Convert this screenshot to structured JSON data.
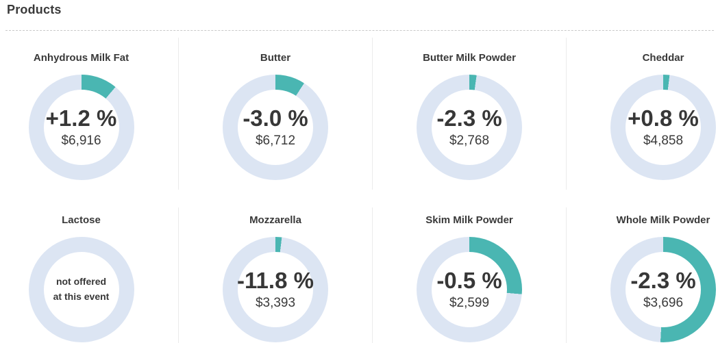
{
  "header": {
    "title": "Products"
  },
  "theme": {
    "arc_color": "#4ab6b2",
    "ring_color": "#dce5f3",
    "text_color": "#373737",
    "separator_color": "#ebebeb",
    "dashed_line_color": "#c9c9c9"
  },
  "chart_data": {
    "type": "pie",
    "subtype": "donut-grid",
    "title": "Products",
    "legend": "none",
    "charts": [
      {
        "label": "Anhydrous Milk Fat",
        "change": "+1.2 %",
        "change_value": 1.2,
        "price": "$6,916",
        "price_value": 6916,
        "arc_deg": 40
      },
      {
        "label": "Butter",
        "change": "-3.0 %",
        "change_value": -3.0,
        "price": "$6,712",
        "price_value": 6712,
        "arc_deg": 33
      },
      {
        "label": "Butter Milk Powder",
        "change": "-2.3 %",
        "change_value": -2.3,
        "price": "$2,768",
        "price_value": 2768,
        "arc_deg": 8
      },
      {
        "label": "Cheddar",
        "change": "+0.8 %",
        "change_value": 0.8,
        "price": "$4,858",
        "price_value": 4858,
        "arc_deg": 7
      },
      {
        "label": "Lactose",
        "note": "not offered\nat this event",
        "arc_deg": 0
      },
      {
        "label": "Mozzarella",
        "change": "-11.8 %",
        "change_value": -11.8,
        "price": "$3,393",
        "price_value": 3393,
        "arc_deg": 7
      },
      {
        "label": "Skim Milk Powder",
        "change": "-0.5 %",
        "change_value": -0.5,
        "price": "$2,599",
        "price_value": 2599,
        "arc_deg": 95
      },
      {
        "label": "Whole Milk Powder",
        "change": "-2.3 %",
        "change_value": -2.3,
        "price": "$3,696",
        "price_value": 3696,
        "arc_deg": 183
      }
    ]
  }
}
